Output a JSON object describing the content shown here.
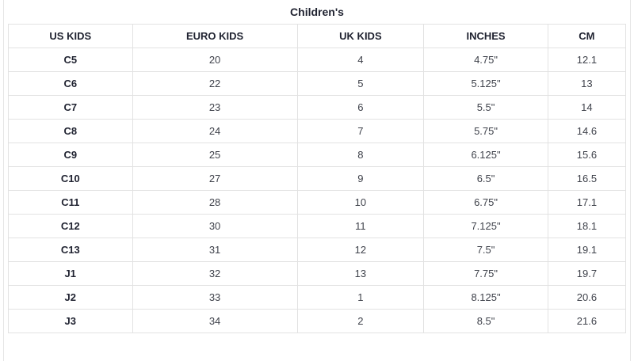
{
  "title": "Children's",
  "colors": {
    "border": "#e2e2e2",
    "outer_border": "#e6e6e6",
    "heading_text": "#1f2230",
    "cell_text": "#3f424b",
    "background": "#ffffff"
  },
  "chart_data": {
    "type": "table",
    "title": "Children's",
    "columns": [
      "US KIDS",
      "EURO KIDS",
      "UK KIDS",
      "INCHES",
      "CM"
    ],
    "rows": [
      [
        "C5",
        "20",
        "4",
        "4.75\"",
        "12.1"
      ],
      [
        "C6",
        "22",
        "5",
        "5.125\"",
        "13"
      ],
      [
        "C7",
        "23",
        "6",
        "5.5\"",
        "14"
      ],
      [
        "C8",
        "24",
        "7",
        "5.75\"",
        "14.6"
      ],
      [
        "C9",
        "25",
        "8",
        "6.125\"",
        "15.6"
      ],
      [
        "C10",
        "27",
        "9",
        "6.5\"",
        "16.5"
      ],
      [
        "C11",
        "28",
        "10",
        "6.75\"",
        "17.1"
      ],
      [
        "C12",
        "30",
        "11",
        "7.125\"",
        "18.1"
      ],
      [
        "C13",
        "31",
        "12",
        "7.5\"",
        "19.1"
      ],
      [
        "J1",
        "32",
        "13",
        "7.75\"",
        "19.7"
      ],
      [
        "J2",
        "33",
        "1",
        "8.125\"",
        "20.6"
      ],
      [
        "J3",
        "34",
        "2",
        "8.5\"",
        "21.6"
      ]
    ]
  }
}
